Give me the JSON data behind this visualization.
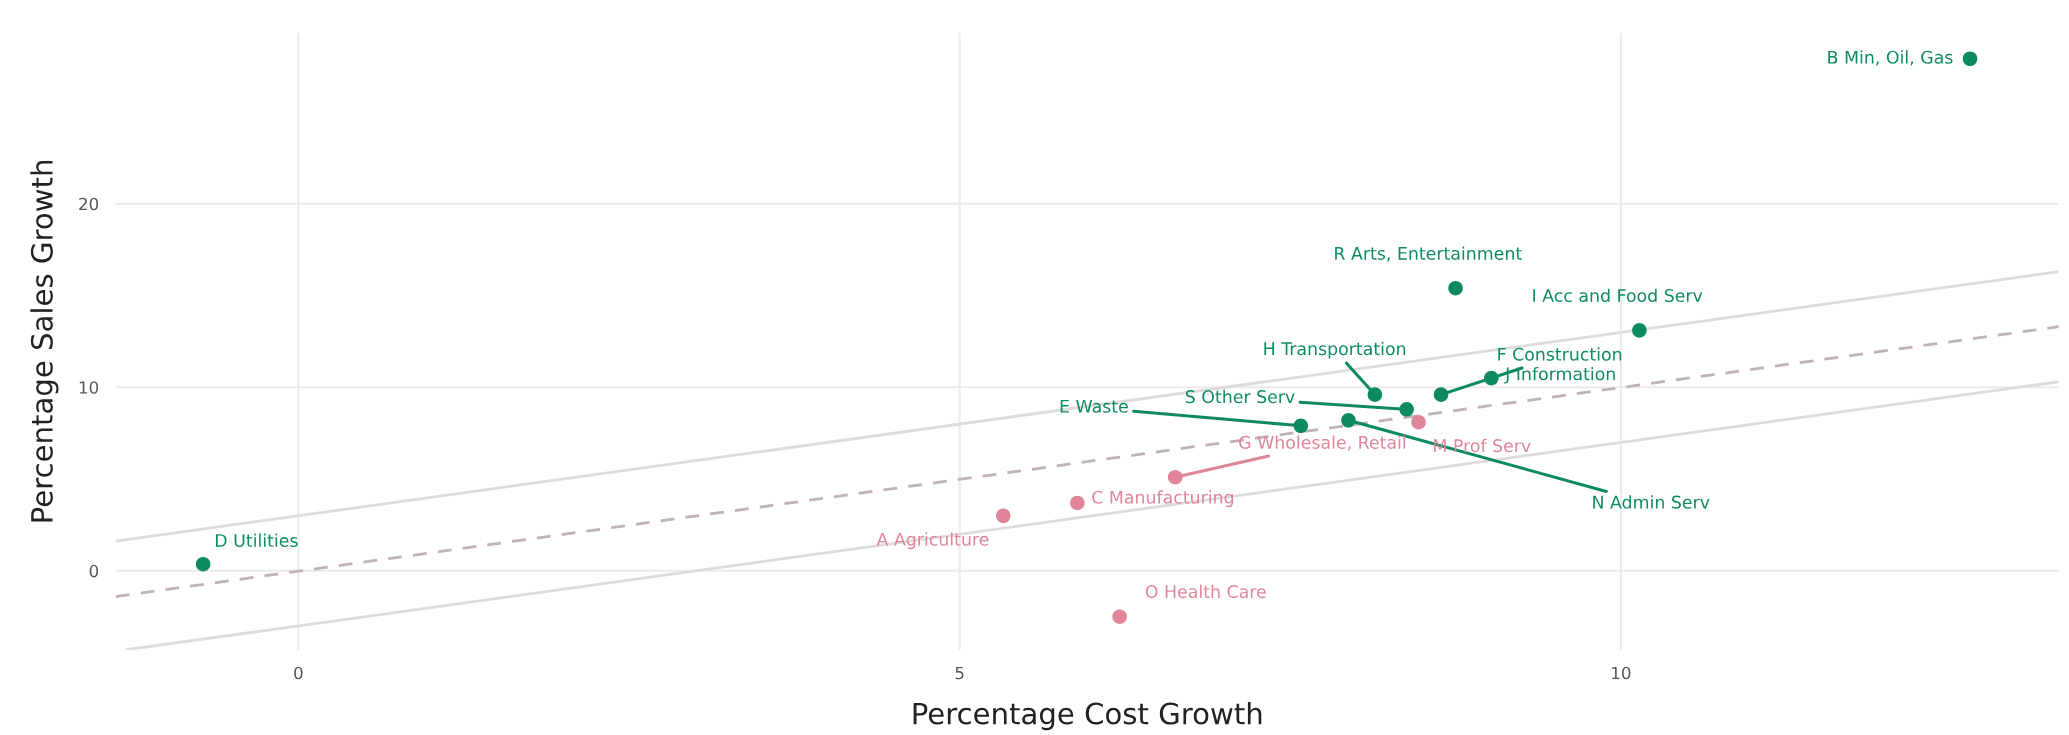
{
  "chart_data": {
    "type": "scatter",
    "xlabel": "Percentage Cost Growth",
    "ylabel": "Percentage Sales Growth",
    "xlim": [
      -1.38,
      13.31
    ],
    "ylim": [
      -4.3,
      29.3
    ],
    "xticks": [
      0,
      5,
      10
    ],
    "yticks": [
      0,
      10,
      20
    ],
    "grid": true,
    "legend": false,
    "marker": "circle",
    "series": [
      {
        "type": "line",
        "color": "#dcdcdc",
        "line_style": "solid",
        "marker": "none",
        "x": [
          -1.38,
          13.31
        ],
        "values": [
          1.62,
          16.3
        ]
      },
      {
        "type": "line",
        "color": "#bfb3b6",
        "line_style": "dashed",
        "marker": "none",
        "x": [
          -1.38,
          13.31
        ],
        "values": [
          -1.4,
          13.3
        ]
      },
      {
        "type": "line",
        "color": "#dcdcdc",
        "line_style": "solid",
        "marker": "none",
        "x": [
          -1.3,
          13.31
        ],
        "values": [
          -4.3,
          10.3
        ]
      },
      {
        "type": "scatter",
        "color": "#0e8a63",
        "x": [
          -0.72,
          12.64,
          7.58,
          8.64,
          8.14,
          10.14,
          9.02,
          7.94,
          8.75,
          8.38
        ],
        "values": [
          0.36,
          27.9,
          7.9,
          9.6,
          9.6,
          13.1,
          10.5,
          8.2,
          15.4,
          8.8
        ],
        "value_labels": [
          "D Utilities",
          "B Min, Oil, Gas",
          "E Waste",
          "F Construction",
          "H Transportation",
          "I Acc and Food Serv",
          "J Information",
          "N Admin Serv",
          "R Arts, Entertainment",
          "S Other Serv"
        ]
      },
      {
        "type": "scatter",
        "color": "#e0849a",
        "x": [
          5.33,
          5.89,
          6.63,
          8.47,
          6.21
        ],
        "values": [
          3.0,
          3.7,
          5.1,
          8.1,
          -2.5
        ],
        "value_labels": [
          "A Agriculture",
          "C Manufacturing",
          "G Wholesale, Retail",
          "M Prof Serv",
          "O Health Care"
        ]
      }
    ]
  }
}
